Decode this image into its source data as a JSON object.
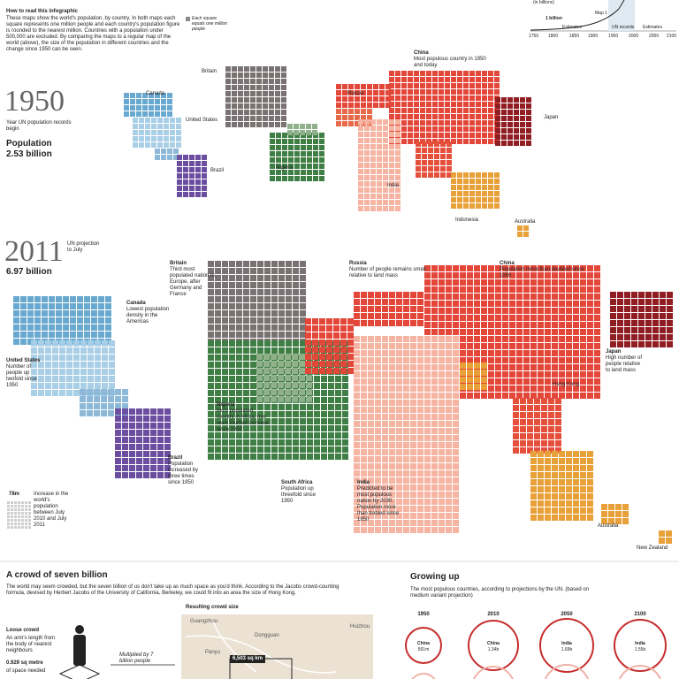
{
  "intro": {
    "title": "How to read this infographic",
    "text": "These maps show the world's population, by country. In both maps each square represents one million people and each country's population figure is rounded to the nearest million. Countries with a population under 500,000 are excluded. By comparing the maps to a regular map of the world (above), the size of the population in different countries and the change since 1950 can be seen.",
    "legend_note": "Each square equals one million people"
  },
  "inset": {
    "unit": "(in billions)",
    "marker": "1 billion",
    "map_label": "Map 1",
    "era_labels": [
      "Estimates",
      "UN records",
      "Estimates"
    ],
    "axis_years": [
      "1750",
      "1800",
      "1850",
      "1900",
      "1950",
      "2000",
      "2050",
      "2100"
    ]
  },
  "map_1950": {
    "year": "1950",
    "caption": "Year UN population records begin",
    "population_label": "Population",
    "population_value": "2.53 billion",
    "labels": {
      "canada": "Canada",
      "united_states": "United States",
      "brazil": "Brazil",
      "britain": "Britain",
      "russia": "Russia",
      "nigeria": "Nigeria",
      "india": "India",
      "indonesia": "Indonesia",
      "australia": "Australia",
      "japan": "Japan"
    },
    "china": {
      "name": "China",
      "text": "Most populous country in 1950 and today"
    }
  },
  "map_2011": {
    "year": "2011",
    "year_note": "UN projection to July",
    "population_value": "6.97 billion",
    "annotations": {
      "britain": {
        "name": "Britain",
        "text": "Third most populated nation in Europe, after Germany and France"
      },
      "canada": {
        "name": "Canada",
        "text": "Lowest population density in the Americas"
      },
      "united_states": {
        "name": "United States",
        "text": "Number of people up twofold since 1950"
      },
      "russia": {
        "name": "Russia",
        "text": "Number of people remains small relative to land mass"
      },
      "china": {
        "name": "China",
        "text": "Population more than doubled since 1950"
      },
      "nigeria": {
        "name": "Nigeria",
        "text": "Most populated country in Africa, has seen fourfold increase since 1950"
      },
      "brazil": {
        "name": "Brazil",
        "text": "Population increased by three times since 1950"
      },
      "south_africa": {
        "name": "South Africa",
        "text": "Population up threefold since 1950"
      },
      "india": {
        "name": "India",
        "text": "Predicted to be most populous nation by 2030. Population more than trebled since 1950"
      },
      "japan": {
        "name": "Japan",
        "text": "High number of people relative to land mass"
      }
    },
    "labels": {
      "hong_kong": "Hong Kong",
      "australia": "Australia",
      "new_zealand": "New Zealand"
    },
    "increase": {
      "value": "78m",
      "text": "Increase in the world's population between July 2010 and July 2011"
    }
  },
  "crowd": {
    "title": "A crowd of seven billion",
    "text": "The world may seem crowded, but the seven billion of us don't take up as much space as you'd think. According to the Jacobs crowd-counting formula, devised by Herbert Jacobs of the University of California, Berkeley, we could fit into an area the size of Hong Kong.",
    "result_title": "Resulting crowd size",
    "loose_title": "Loose crowd",
    "loose_text": "An arm's length from the body of nearest neighbours",
    "space_value": "0.929 sq metre",
    "space_text": "of space needed",
    "multiplied": "Multiplied by 7 billion people",
    "places": [
      "Guangzhou",
      "Dongguan",
      "Huizhou",
      "Panyu"
    ],
    "area": "6,503 sq km"
  },
  "growing": {
    "title": "Growing up",
    "subtitle": "The most populous countries, according to projections by the UN. (based on medium variant projection)",
    "years": [
      "1950",
      "2010",
      "2050",
      "2100"
    ],
    "leaders": [
      {
        "country": "China",
        "value": "551m"
      },
      {
        "country": "China",
        "value": "1.34b"
      },
      {
        "country": "India",
        "value": "1.69b"
      },
      {
        "country": "India",
        "value": "1.55b"
      }
    ]
  }
}
